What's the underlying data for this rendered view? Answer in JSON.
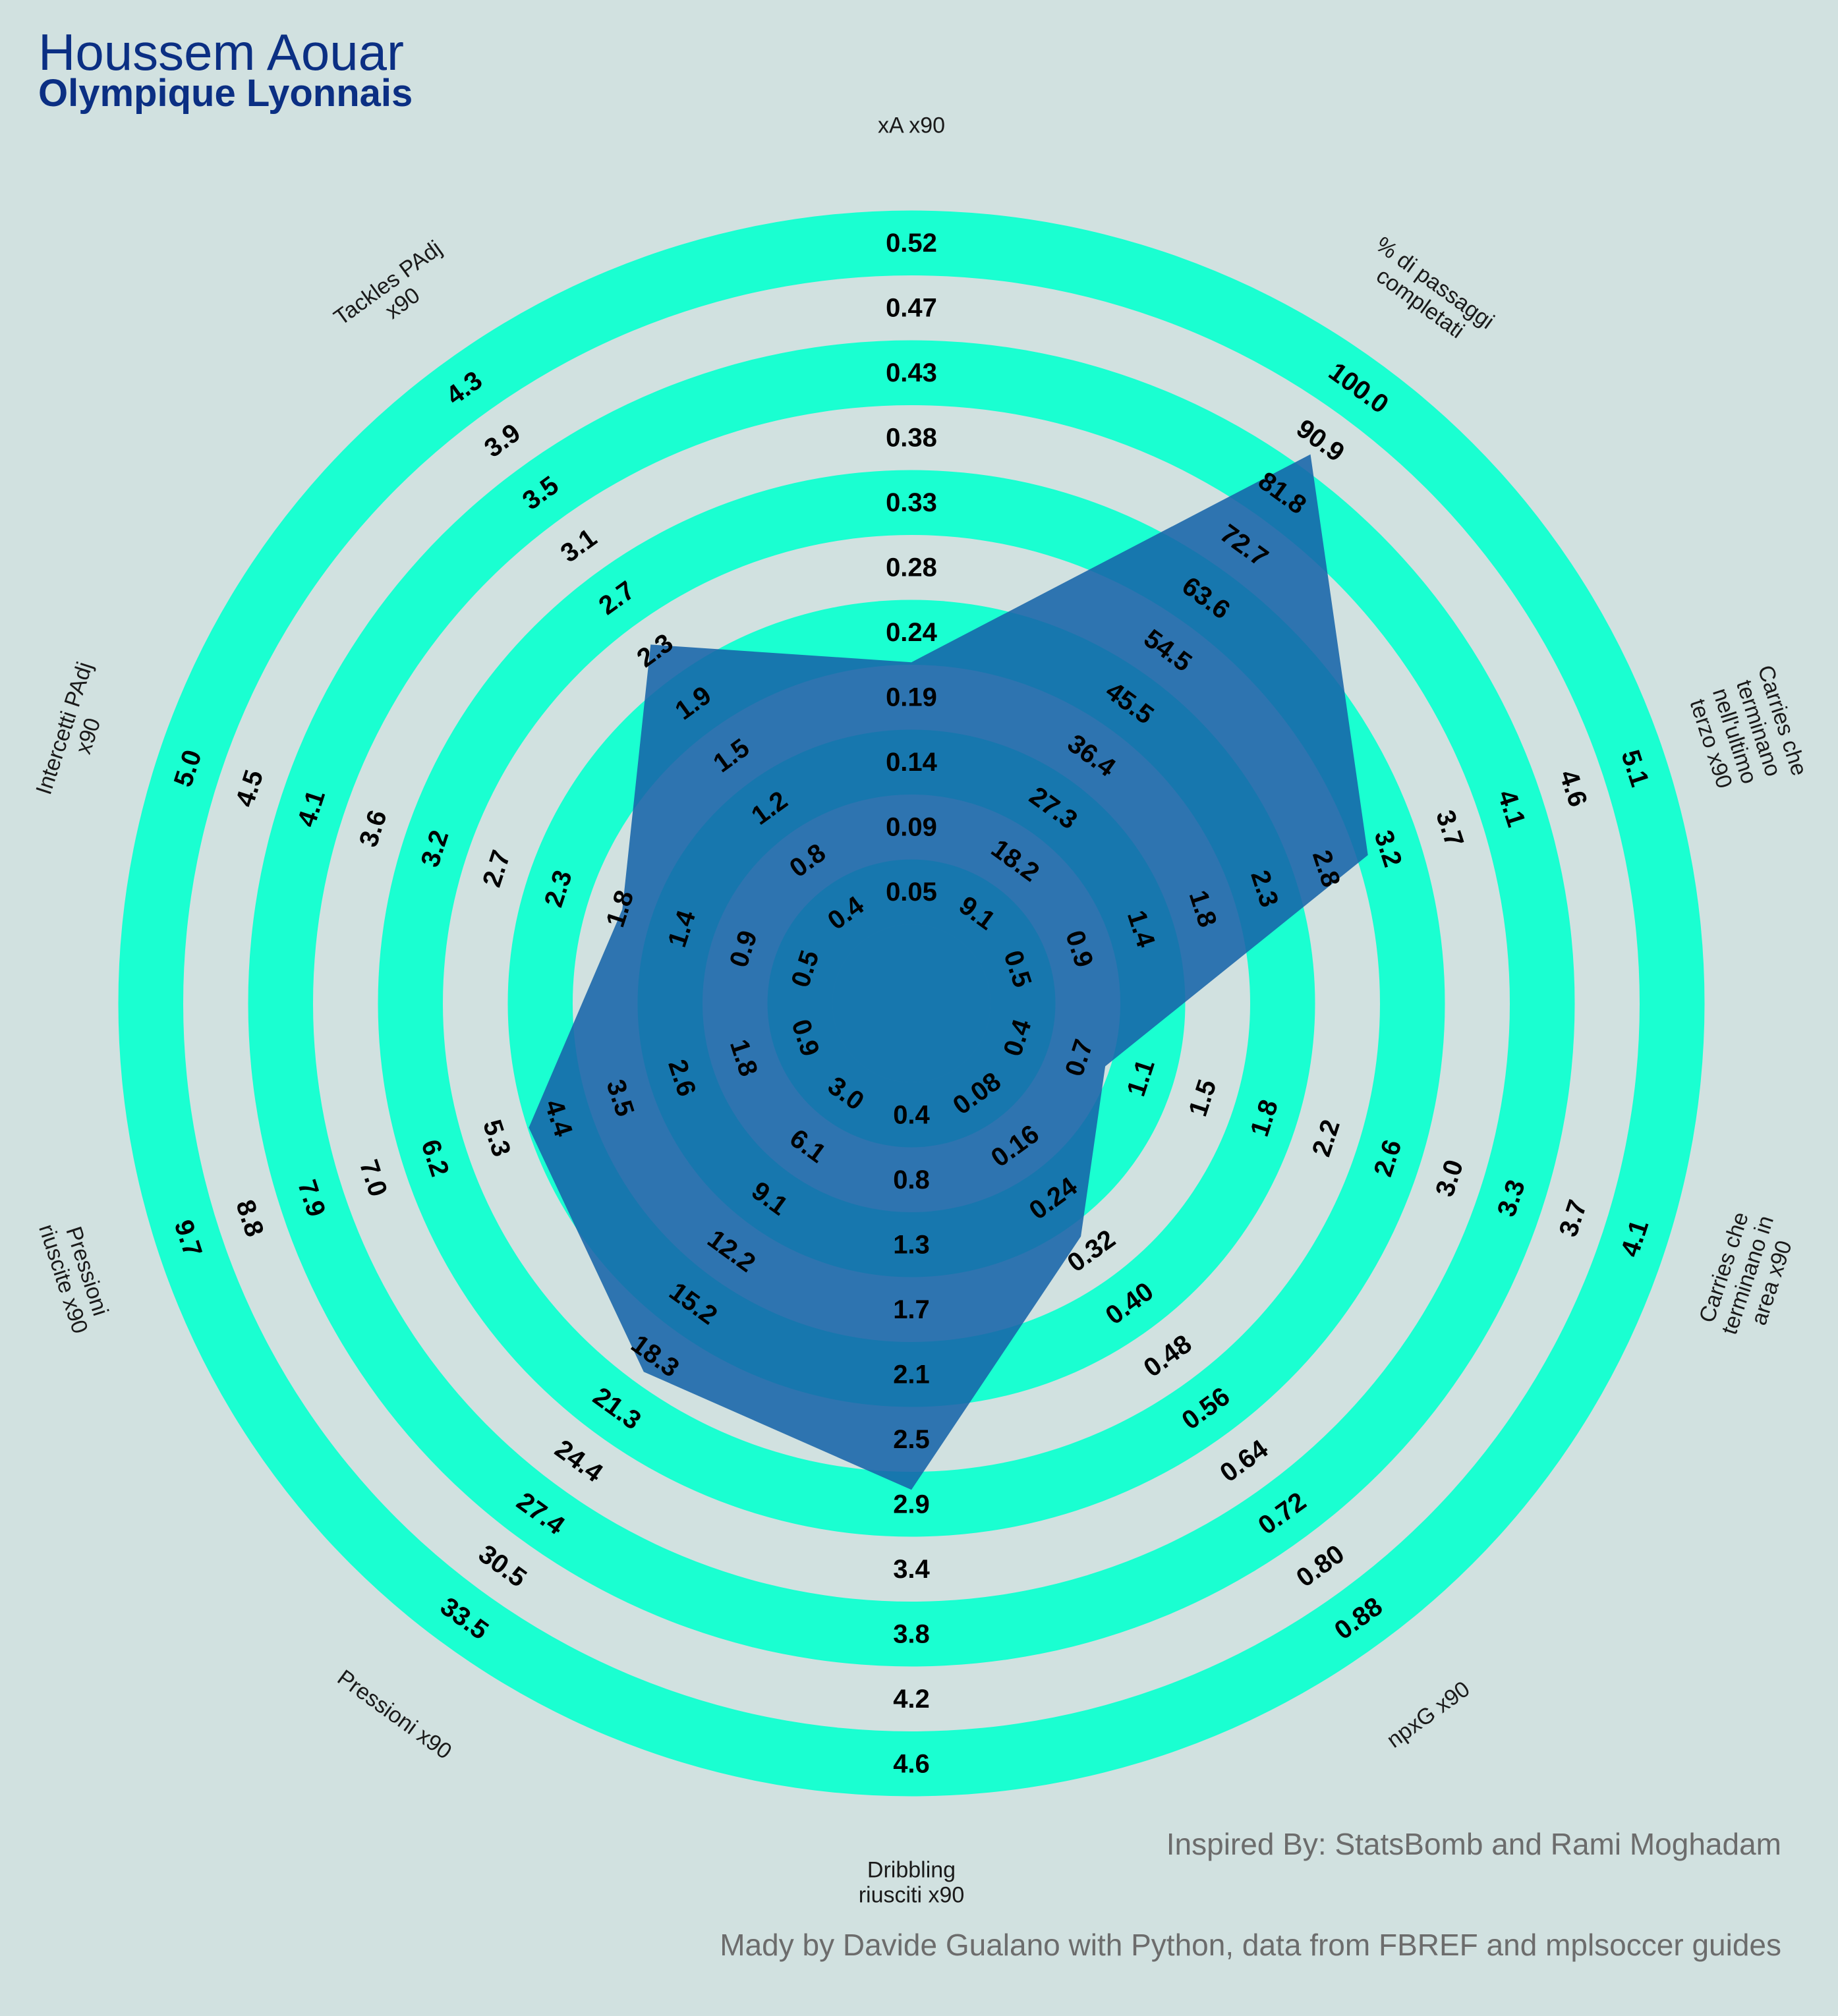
{
  "header": {
    "title": "Houssem Aouar",
    "subtitle": "Olympique Lyonnais"
  },
  "footer": {
    "credit_inspired": "Inspired By: StatsBomb and Rami Moghadam",
    "credit_made": "Mady by Davide Gualano with Python, data from FBREF and mplsoccer guides"
  },
  "colors": {
    "background": "#d1e1e0",
    "ring_band": "#1affd1",
    "ring_gap": "#d1e1e0",
    "polygon_fill": "#1764a8",
    "polygon_opacity": "0.88",
    "title": "#0b2f83"
  },
  "chart_data": {
    "type": "radar",
    "title": "Houssem Aouar",
    "subtitle": "Olympique Lyonnais",
    "params": [
      {
        "label": [
          "xA x90"
        ],
        "min": 0.0,
        "max": 0.52,
        "ring_labels": [
          "0.05",
          "0.09",
          "0.14",
          "0.19",
          "0.24",
          "0.28",
          "0.33",
          "0.38",
          "0.43",
          "0.47",
          "0.52"
        ],
        "value": 0.2
      },
      {
        "label": [
          "% di passaggi",
          "completati"
        ],
        "min": 0.0,
        "max": 100.0,
        "ring_labels": [
          "9.1",
          "18.2",
          "27.3",
          "36.4",
          "45.5",
          "54.5",
          "63.6",
          "72.7",
          "81.8",
          "90.9",
          "100.0"
        ],
        "value": 88.0
      },
      {
        "label": [
          "Carries che",
          "terminano",
          "nell'ultimo",
          "terzo x90"
        ],
        "min": 0.0,
        "max": 5.1,
        "ring_labels": [
          "0.5",
          "0.9",
          "1.4",
          "1.8",
          "2.3",
          "2.8",
          "3.2",
          "3.7",
          "4.1",
          "4.6",
          "5.1"
        ],
        "value": 3.0
      },
      {
        "label": [
          "Carries che",
          "terminano in",
          "area x90"
        ],
        "min": 0.0,
        "max": 4.1,
        "ring_labels": [
          "0.4",
          "0.7",
          "1.1",
          "1.5",
          "1.8",
          "2.2",
          "2.6",
          "3.0",
          "3.3",
          "3.7",
          "4.1"
        ],
        "value": 0.75
      },
      {
        "label": [
          "npxG x90"
        ],
        "min": 0.0,
        "max": 0.88,
        "ring_labels": [
          "0.08",
          "0.16",
          "0.24",
          "0.32",
          "0.40",
          "0.48",
          "0.56",
          "0.64",
          "0.72",
          "0.80",
          "0.88"
        ],
        "value": 0.27
      },
      {
        "label": [
          "Dribbling",
          "riusciti x90"
        ],
        "min": 0.0,
        "max": 4.6,
        "ring_labels": [
          "0.4",
          "0.8",
          "1.3",
          "1.7",
          "2.1",
          "2.5",
          "2.9",
          "3.4",
          "3.8",
          "4.2",
          "4.6"
        ],
        "value": 2.75
      },
      {
        "label": [
          "Pressioni x90"
        ],
        "min": 0.0,
        "max": 33.5,
        "ring_labels": [
          "3.0",
          "6.1",
          "9.1",
          "12.2",
          "15.2",
          "18.3",
          "21.3",
          "24.4",
          "27.4",
          "30.5",
          "33.5"
        ],
        "value": 18.5
      },
      {
        "label": [
          "Pressioni",
          "riuscite x90"
        ],
        "min": 0.0,
        "max": 9.7,
        "ring_labels": [
          "0.9",
          "1.8",
          "2.6",
          "3.5",
          "4.4",
          "5.3",
          "6.2",
          "7.0",
          "7.9",
          "8.8",
          "9.7"
        ],
        "value": 4.6
      },
      {
        "label": [
          "Intercetti PAdj",
          "x90"
        ],
        "min": 0.0,
        "max": 5.0,
        "ring_labels": [
          "0.5",
          "0.9",
          "1.4",
          "1.8",
          "2.3",
          "2.7",
          "3.2",
          "3.6",
          "4.1",
          "4.5",
          "5.0"
        ],
        "value": 1.65
      },
      {
        "label": [
          "Tackles PAdj",
          "x90"
        ],
        "min": 0.0,
        "max": 4.3,
        "ring_labels": [
          "0.4",
          "0.8",
          "1.2",
          "1.5",
          "1.9",
          "2.3",
          "2.7",
          "3.1",
          "3.5",
          "3.9",
          "4.3"
        ],
        "value": 2.3
      }
    ]
  }
}
